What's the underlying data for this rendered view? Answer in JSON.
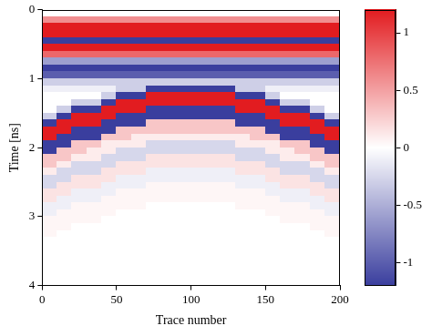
{
  "chart_data": {
    "type": "heatmap",
    "xlabel": "Trace number",
    "ylabel": "Time [ns]",
    "xlim": [
      0,
      200
    ],
    "xticks": [
      0,
      50,
      100,
      150,
      200
    ],
    "ylim": [
      0,
      4
    ],
    "yticks": [
      0,
      1,
      2,
      3,
      4
    ],
    "grid": false,
    "x": [
      5,
      15,
      25,
      35,
      45,
      55,
      65,
      75,
      85,
      95,
      105,
      115,
      125,
      135,
      145,
      155,
      165,
      175,
      185,
      195
    ],
    "y": [
      0.05,
      0.15,
      0.25,
      0.35,
      0.45,
      0.55,
      0.65,
      0.75,
      0.85,
      0.95,
      1.05,
      1.15,
      1.25,
      1.35,
      1.45,
      1.55,
      1.65,
      1.75,
      1.85,
      1.95,
      2.05,
      2.15,
      2.25,
      2.35,
      2.45,
      2.55,
      2.65,
      2.75,
      2.85,
      2.95,
      3.05,
      3.15,
      3.25,
      3.35,
      3.45,
      3.55,
      3.65,
      3.75,
      3.85,
      3.95
    ],
    "z": [
      [
        0,
        0.6,
        1.2,
        1.2,
        -1.2,
        1.2,
        0.8,
        -0.6,
        -1.2,
        -1,
        -0.3,
        -0.1,
        0,
        0,
        0,
        -0.3,
        -1.2,
        1.2,
        1.2,
        -1.2,
        -1.2,
        0.3,
        0.3,
        0.1,
        -0.25,
        -0.25,
        0.15,
        0.15,
        -0.1,
        -0.1,
        0.05,
        0.05,
        0.05,
        0,
        0,
        0,
        0,
        0,
        0,
        0
      ],
      [
        0,
        0.6,
        1.2,
        1.2,
        -1.2,
        1.2,
        0.8,
        -0.6,
        -1.2,
        -1,
        -0.3,
        -0.1,
        0,
        0,
        -0.3,
        -1.2,
        1.2,
        1.2,
        -1.2,
        -1.2,
        0.3,
        0.3,
        0.1,
        -0.25,
        -0.25,
        0.15,
        0.15,
        -0.1,
        -0.1,
        0.05,
        0.05,
        0.05,
        0,
        0,
        0,
        0,
        0,
        0,
        0,
        0
      ],
      [
        0,
        0.6,
        1.2,
        1.2,
        -1.2,
        1.2,
        0.8,
        -0.6,
        -1.2,
        -1,
        -0.3,
        -0.1,
        0,
        -0.3,
        -1.2,
        1.2,
        1.2,
        -1.2,
        -1.2,
        0.3,
        0.3,
        0.1,
        -0.25,
        -0.25,
        0.15,
        0.15,
        -0.1,
        -0.1,
        0.05,
        0.05,
        0.05,
        0,
        0,
        0,
        0,
        0,
        0,
        0,
        0,
        0
      ],
      [
        0,
        0.6,
        1.2,
        1.2,
        -1.2,
        1.2,
        0.8,
        -0.6,
        -1.2,
        -1,
        -0.3,
        -0.1,
        0,
        -0.3,
        -1.2,
        1.2,
        1.2,
        -1.2,
        -1.2,
        0.3,
        0.1,
        0.1,
        -0.25,
        -0.25,
        0.15,
        0.15,
        -0.1,
        -0.1,
        0.05,
        0.05,
        0.05,
        0,
        0,
        0,
        0,
        0,
        0,
        0,
        0,
        0
      ],
      [
        0,
        0.6,
        1.2,
        1.2,
        -1.2,
        1.2,
        0.8,
        -0.6,
        -1.2,
        -1,
        -0.3,
        -0.1,
        -0.3,
        -1.2,
        1.2,
        1.2,
        -1.2,
        -1.2,
        0.3,
        0.1,
        0.1,
        -0.25,
        -0.25,
        0.15,
        0.15,
        -0.1,
        -0.1,
        0.05,
        0.05,
        0.05,
        0,
        0,
        0,
        0,
        0,
        0,
        0,
        0,
        0,
        0
      ],
      [
        0,
        0.6,
        1.2,
        1.2,
        -1.2,
        1.2,
        0.8,
        -0.6,
        -1.2,
        -1,
        -0.3,
        -0.3,
        -1.2,
        1.2,
        1.2,
        -1.2,
        -1.2,
        0.3,
        0.3,
        0.1,
        -0.25,
        -0.25,
        0.15,
        0.15,
        -0.1,
        -0.1,
        0.05,
        0.05,
        0.05,
        0,
        0,
        0,
        0,
        0,
        0,
        0,
        0,
        0,
        0,
        0
      ],
      [
        0,
        0.6,
        1.2,
        1.2,
        -1.2,
        1.2,
        0.8,
        -0.6,
        -1.2,
        -1,
        -0.3,
        -0.3,
        -1.2,
        1.2,
        1.2,
        -1.2,
        -1.2,
        0.3,
        0.1,
        0.1,
        -0.25,
        -0.25,
        0.15,
        0.15,
        -0.1,
        -0.1,
        0.05,
        0.05,
        0.05,
        0,
        0,
        0,
        0,
        0,
        0,
        0,
        0,
        0,
        0,
        0
      ],
      [
        0,
        0.6,
        1.2,
        1.2,
        -1.2,
        1.2,
        0.8,
        -0.6,
        -1.2,
        -1,
        -0.3,
        -1.2,
        1.2,
        1.2,
        -1.2,
        -1.2,
        0.3,
        0.3,
        0.1,
        -0.25,
        -0.25,
        0.15,
        0.15,
        -0.1,
        -0.1,
        0.05,
        0.05,
        0.05,
        0,
        0,
        0,
        0,
        0,
        0,
        0,
        0,
        0,
        0,
        0,
        0
      ],
      [
        0,
        0.6,
        1.2,
        1.2,
        -1.2,
        1.2,
        0.8,
        -0.6,
        -1.2,
        -1,
        -0.3,
        -1.2,
        1.2,
        1.2,
        -1.2,
        -1.2,
        0.3,
        0.3,
        0.1,
        -0.25,
        -0.25,
        0.15,
        0.15,
        -0.1,
        -0.1,
        0.05,
        0.05,
        0.05,
        0,
        0,
        0,
        0,
        0,
        0,
        0,
        0,
        0,
        0,
        0,
        0
      ],
      [
        0,
        0.6,
        1.2,
        1.2,
        -1.2,
        1.2,
        0.8,
        -0.6,
        -1.2,
        -1,
        -0.3,
        -1.2,
        1.2,
        1.2,
        -1.2,
        -1.2,
        0.3,
        0.3,
        0.1,
        -0.25,
        -0.25,
        0.15,
        0.15,
        -0.1,
        -0.1,
        0.05,
        0.05,
        0.05,
        0,
        0,
        0,
        0,
        0,
        0,
        0,
        0,
        0,
        0,
        0,
        0
      ],
      [
        0,
        0.6,
        1.2,
        1.2,
        -1.2,
        1.2,
        0.8,
        -0.6,
        -1.2,
        -1,
        -0.3,
        -1.2,
        1.2,
        1.2,
        -1.2,
        -1.2,
        0.3,
        0.3,
        0.1,
        -0.25,
        -0.25,
        0.15,
        0.15,
        -0.1,
        -0.1,
        0.05,
        0.05,
        0.05,
        0,
        0,
        0,
        0,
        0,
        0,
        0,
        0,
        0,
        0,
        0,
        0
      ],
      [
        0,
        0.6,
        1.2,
        1.2,
        -1.2,
        1.2,
        0.8,
        -0.6,
        -1.2,
        -1,
        -0.3,
        -1.2,
        1.2,
        1.2,
        -1.2,
        -1.2,
        0.3,
        0.3,
        0.1,
        -0.25,
        -0.25,
        0.15,
        0.15,
        -0.1,
        -0.1,
        0.05,
        0.05,
        0.05,
        0,
        0,
        0,
        0,
        0,
        0,
        0,
        0,
        0,
        0,
        0,
        0
      ],
      [
        0,
        0.6,
        1.2,
        1.2,
        -1.2,
        1.2,
        0.8,
        -0.6,
        -1.2,
        -1,
        -0.3,
        -1.2,
        1.2,
        1.2,
        -1.2,
        -1.2,
        0.3,
        0.3,
        0.1,
        -0.25,
        -0.25,
        0.15,
        0.15,
        -0.1,
        -0.1,
        0.05,
        0.05,
        0.05,
        0,
        0,
        0,
        0,
        0,
        0,
        0,
        0,
        0,
        0,
        0,
        0
      ],
      [
        0,
        0.6,
        1.2,
        1.2,
        -1.2,
        1.2,
        0.8,
        -0.6,
        -1.2,
        -1,
        -0.3,
        -0.3,
        -1.2,
        1.2,
        1.2,
        -1.2,
        -1.2,
        0.3,
        0.1,
        0.1,
        -0.25,
        -0.25,
        0.15,
        0.15,
        -0.1,
        -0.1,
        0.05,
        0.05,
        0.05,
        0,
        0,
        0,
        0,
        0,
        0,
        0,
        0,
        0,
        0,
        0
      ],
      [
        0,
        0.6,
        1.2,
        1.2,
        -1.2,
        1.2,
        0.8,
        -0.6,
        -1.2,
        -1,
        -0.3,
        -0.3,
        -1.2,
        1.2,
        1.2,
        -1.2,
        -1.2,
        0.3,
        0.3,
        0.1,
        -0.25,
        -0.25,
        0.15,
        0.15,
        -0.1,
        -0.1,
        0.05,
        0.05,
        0.05,
        0,
        0,
        0,
        0,
        0,
        0,
        0,
        0,
        0,
        0,
        0
      ],
      [
        0,
        0.6,
        1.2,
        1.2,
        -1.2,
        1.2,
        0.8,
        -0.6,
        -1.2,
        -1,
        -0.3,
        -0.1,
        -0.3,
        -1.2,
        1.2,
        1.2,
        -1.2,
        -1.2,
        0.3,
        0.1,
        0.1,
        -0.25,
        -0.25,
        0.15,
        0.15,
        -0.1,
        -0.1,
        0.05,
        0.05,
        0.05,
        0,
        0,
        0,
        0,
        0,
        0,
        0,
        0,
        0,
        0
      ],
      [
        0,
        0.6,
        1.2,
        1.2,
        -1.2,
        1.2,
        0.8,
        -0.6,
        -1.2,
        -1,
        -0.3,
        -0.1,
        0,
        -0.3,
        -1.2,
        1.2,
        1.2,
        -1.2,
        -1.2,
        0.3,
        0.1,
        0.1,
        -0.25,
        -0.25,
        0.15,
        0.15,
        -0.1,
        -0.1,
        0.05,
        0.05,
        0.05,
        0,
        0,
        0,
        0,
        0,
        0,
        0,
        0,
        0
      ],
      [
        0,
        0.6,
        1.2,
        1.2,
        -1.2,
        1.2,
        0.8,
        -0.6,
        -1.2,
        -1,
        -0.3,
        -0.1,
        0,
        -0.3,
        -1.2,
        1.2,
        1.2,
        -1.2,
        -1.2,
        0.3,
        0.3,
        0.1,
        -0.25,
        -0.25,
        0.15,
        0.15,
        -0.1,
        -0.1,
        0.05,
        0.05,
        0.05,
        0,
        0,
        0,
        0,
        0,
        0,
        0,
        0,
        0
      ],
      [
        0,
        0.6,
        1.2,
        1.2,
        -1.2,
        1.2,
        0.8,
        -0.6,
        -1.2,
        -1,
        -0.3,
        -0.1,
        0,
        0,
        -0.3,
        -1.2,
        1.2,
        1.2,
        -1.2,
        -1.2,
        0.3,
        0.3,
        0.1,
        -0.25,
        -0.25,
        0.15,
        0.15,
        -0.1,
        -0.1,
        0.05,
        0.05,
        0.05,
        0,
        0,
        0,
        0,
        0,
        0,
        0,
        0
      ],
      [
        0,
        0.6,
        1.2,
        1.2,
        -1.2,
        1.2,
        0.8,
        -0.6,
        -1.2,
        -1,
        -0.3,
        -0.1,
        0,
        0,
        0,
        -0.3,
        -1.2,
        1.2,
        1.2,
        -1.2,
        -1.2,
        0.3,
        0.3,
        0.1,
        -0.25,
        -0.25,
        0.15,
        0.15,
        -0.1,
        -0.1,
        0.05,
        0.05,
        0.05,
        0,
        0,
        0,
        0,
        0,
        0,
        0
      ]
    ],
    "colorbar": {
      "range": [
        -1.2,
        1.2
      ],
      "ticks": [
        -1,
        -0.5,
        0,
        0.5,
        1
      ]
    }
  }
}
